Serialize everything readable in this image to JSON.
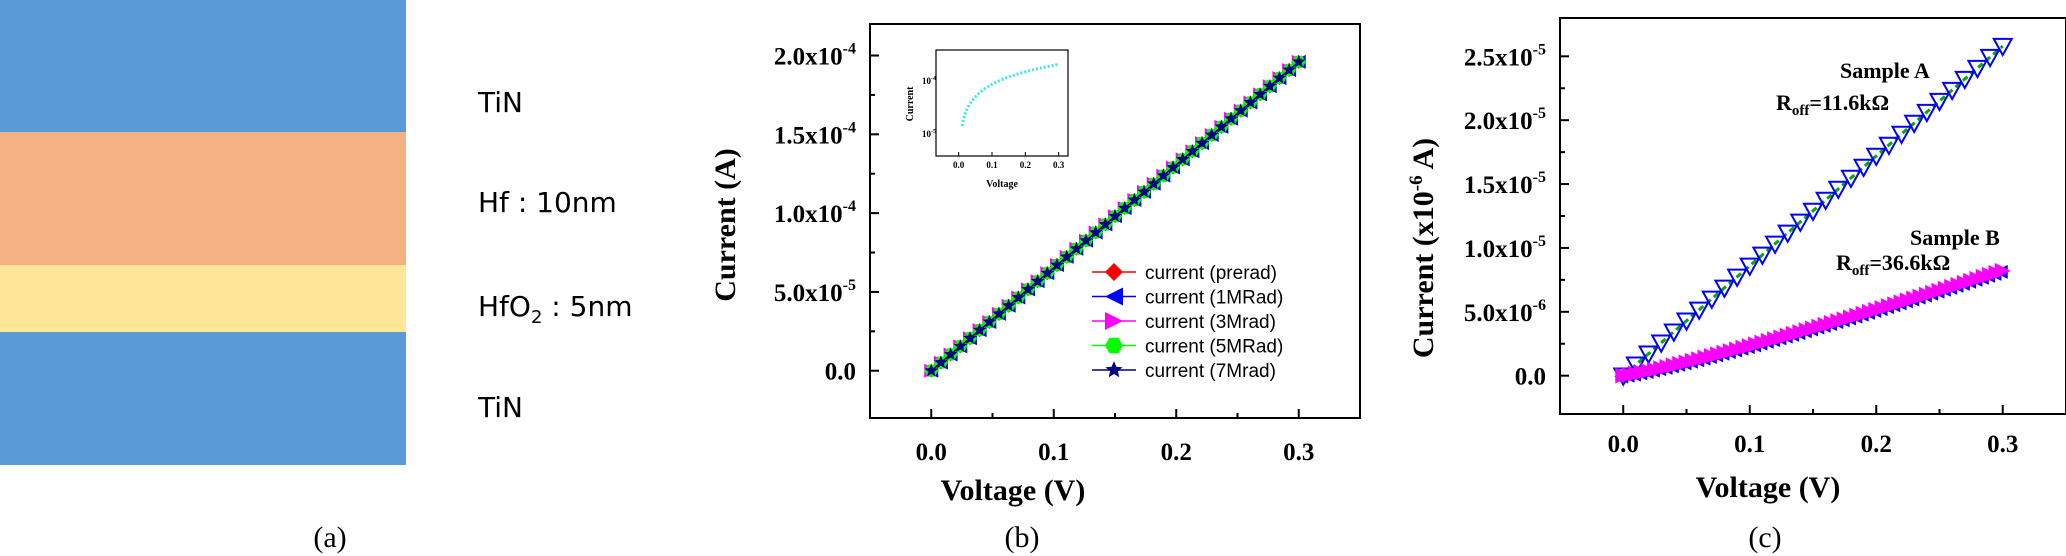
{
  "panel_a": {
    "caption": "(a)",
    "layers": [
      {
        "name": "TiN",
        "label": "TiN",
        "color": "#5b9bd5"
      },
      {
        "name": "Hf",
        "label": "Hf : 10nm",
        "color": "#f4b183"
      },
      {
        "name": "HfO2",
        "label_main": "HfO",
        "label_sub": "2",
        "label_rest": " : 5nm",
        "color": "#ffe699"
      },
      {
        "name": "TiN",
        "label": "TiN",
        "color": "#5b9bd5"
      }
    ]
  },
  "chart_data": [
    {
      "id": "b",
      "type": "line",
      "caption": "(b)",
      "title": "",
      "xlabel": "Voltage (V)",
      "ylabel": "Current (A)",
      "xlim": [
        -0.05,
        0.35
      ],
      "ylim": [
        -3e-05,
        0.00022
      ],
      "x_ticks": [
        "0.0",
        "0.1",
        "0.2",
        "0.3"
      ],
      "y_ticks": [
        {
          "m": "0.0",
          "e": ""
        },
        {
          "m": "5.0x10",
          "e": "-5"
        },
        {
          "m": "1.0x10",
          "e": "-4"
        },
        {
          "m": "1.5x10",
          "e": "-4"
        },
        {
          "m": "2.0x10",
          "e": "-4"
        }
      ],
      "series": [
        {
          "name": "current (prerad)",
          "color": "#ff0000",
          "marker": "diamond",
          "x_start": 0.0,
          "x_end": 0.3,
          "y_start": 0.0,
          "y_end": 0.000196
        },
        {
          "name": "current (1MRad)",
          "color": "#0000ff",
          "marker": "triangle-left",
          "x_start": 0.0,
          "x_end": 0.3,
          "y_start": 0.0,
          "y_end": 0.000196
        },
        {
          "name": "current (3Mrad)",
          "color": "#ff00ff",
          "marker": "triangle-right",
          "x_start": 0.0,
          "x_end": 0.3,
          "y_start": 0.0,
          "y_end": 0.000196
        },
        {
          "name": "current (5MRad)",
          "color": "#00ff00",
          "marker": "hexagon",
          "x_start": 0.0,
          "x_end": 0.3,
          "y_start": 0.0,
          "y_end": 0.000196
        },
        {
          "name": "current (7Mrad)",
          "color": "#000080",
          "marker": "star",
          "x_start": 0.0,
          "x_end": 0.3,
          "y_start": 0.0,
          "y_end": 0.000196
        }
      ],
      "inset": {
        "xlabel": "Voltage",
        "ylabel": "Current",
        "x_ticks": [
          "0.0",
          "0.1",
          "0.2",
          "0.3"
        ],
        "y_ticks": [
          {
            "m": "10",
            "e": "-4"
          },
          {
            "m": "10",
            "e": "-5"
          }
        ],
        "color": "#3ee6e6",
        "yscale": "log"
      }
    },
    {
      "id": "c",
      "type": "line",
      "caption": "(c)",
      "title": "",
      "xlabel": "Voltage (V)",
      "ylabel_main": "Current (x10",
      "ylabel_exp": "-6",
      "ylabel_rest": " A)",
      "xlim": [
        -0.05,
        0.35
      ],
      "ylim": [
        -3e-06,
        2.8e-05
      ],
      "x_ticks": [
        "0.0",
        "0.1",
        "0.2",
        "0.3"
      ],
      "y_ticks": [
        {
          "m": "0.0",
          "e": ""
        },
        {
          "m": "5.0x10",
          "e": "-6"
        },
        {
          "m": "1.0x10",
          "e": "-5"
        },
        {
          "m": "1.5x10",
          "e": "-5"
        },
        {
          "m": "2.0x10",
          "e": "-5"
        },
        {
          "m": "2.5x10",
          "e": "-5"
        }
      ],
      "series": [
        {
          "name": "Sample A",
          "label": "Sample A",
          "r_main": "R",
          "r_sub": "off",
          "r_rest": "=11.6kΩ",
          "color": "#00aa00",
          "marker_color": "#0000ff",
          "x_start": 0.0,
          "x_end": 0.3,
          "y_start": 0.0,
          "y_end": 2.58e-05
        },
        {
          "name": "Sample B",
          "label": "Sample B",
          "r_main": "R",
          "r_sub": "off",
          "r_rest": "=36.6kΩ",
          "color": "#ff00ff",
          "marker_color": "#0000ff",
          "x_start": 0.0,
          "x_end": 0.3,
          "y_start": 0.0,
          "y_end": 8.2e-06
        }
      ]
    }
  ]
}
